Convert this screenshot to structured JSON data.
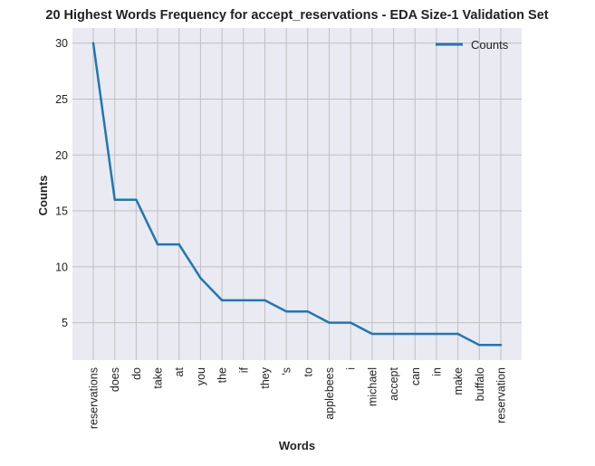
{
  "chart_data": {
    "type": "line",
    "title": "20 Highest Words Frequency for accept_reservations - EDA Size-1 Validation Set",
    "xlabel": "Words",
    "ylabel": "Counts",
    "categories": [
      "reservations",
      "does",
      "do",
      "take",
      "at",
      "you",
      "the",
      "if",
      "they",
      "'s",
      "to",
      "applebees",
      "i",
      "michael",
      "accept",
      "can",
      "in",
      "make",
      "buffalo",
      "reservation"
    ],
    "series": [
      {
        "name": "Counts",
        "values": [
          30,
          16,
          16,
          12,
          12,
          9,
          7,
          7,
          7,
          6,
          6,
          5,
          5,
          4,
          4,
          4,
          4,
          4,
          3,
          3
        ]
      }
    ],
    "yticks": [
      5,
      10,
      15,
      20,
      25,
      30
    ],
    "ylim": [
      1.65,
      31.35
    ],
    "grid": true,
    "legend": "top-right",
    "colors": {
      "line": "#1f77b4",
      "plot_bg": "#eaeaf2",
      "grid": "#c0c0c0"
    }
  }
}
